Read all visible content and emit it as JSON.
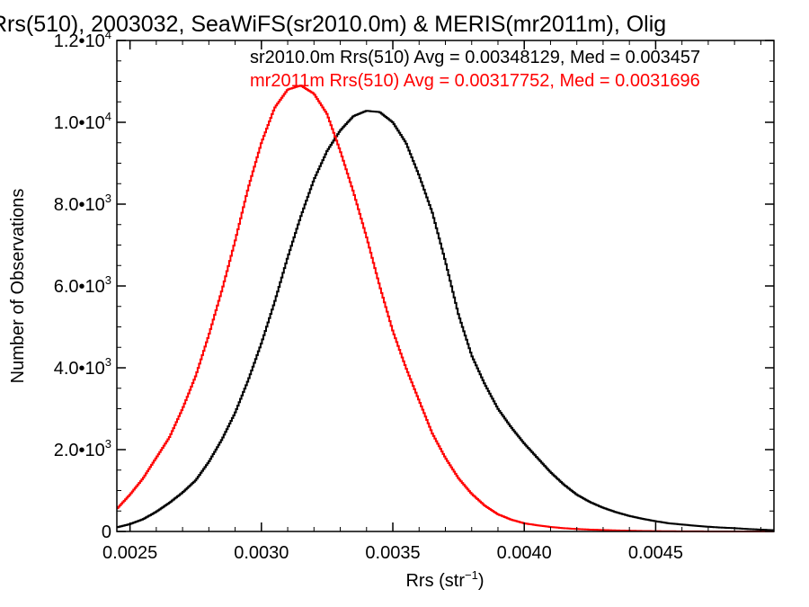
{
  "chart_data": {
    "type": "line",
    "step": true,
    "title": "Rrs(510), 2003032, SeaWiFS(sr2010.0m) & MERIS(mr2011m), Olig",
    "xlabel": "Rrs (str",
    "xlabel_sup": "-1",
    "xlabel_suffix": ")",
    "ylabel": "Number of Observations",
    "xlim": [
      0.00245,
      0.00495
    ],
    "ylim": [
      0,
      12000
    ],
    "grid": false,
    "legend_position": "top-right",
    "x_ticks": [
      {
        "value": 0.0025,
        "label": "0.0025"
      },
      {
        "value": 0.003,
        "label": "0.0030"
      },
      {
        "value": 0.0035,
        "label": "0.0035"
      },
      {
        "value": 0.004,
        "label": "0.0040"
      },
      {
        "value": 0.0045,
        "label": "0.0045"
      }
    ],
    "y_ticks": [
      {
        "value": 0,
        "mant": "0",
        "exp": ""
      },
      {
        "value": 2000,
        "mant": "2.0•10",
        "exp": "3"
      },
      {
        "value": 4000,
        "mant": "4.0•10",
        "exp": "3"
      },
      {
        "value": 6000,
        "mant": "6.0•10",
        "exp": "3"
      },
      {
        "value": 8000,
        "mant": "8.0•10",
        "exp": "3"
      },
      {
        "value": 10000,
        "mant": "1.0•10",
        "exp": "4"
      },
      {
        "value": 12000,
        "mant": "1.2•10",
        "exp": "4"
      }
    ],
    "series": [
      {
        "name": "sr2010.0m",
        "annotation": "sr2010.0m Rrs(510) Avg = 0.00348129, Med = 0.003457",
        "color": "#000000",
        "points": [
          [
            0.00245,
            100
          ],
          [
            0.0025,
            180
          ],
          [
            0.00255,
            300
          ],
          [
            0.0026,
            480
          ],
          [
            0.00265,
            700
          ],
          [
            0.0027,
            950
          ],
          [
            0.00275,
            1250
          ],
          [
            0.0028,
            1700
          ],
          [
            0.00285,
            2250
          ],
          [
            0.0029,
            2900
          ],
          [
            0.00295,
            3700
          ],
          [
            0.003,
            4600
          ],
          [
            0.00305,
            5600
          ],
          [
            0.0031,
            6700
          ],
          [
            0.00315,
            7700
          ],
          [
            0.0032,
            8600
          ],
          [
            0.00325,
            9300
          ],
          [
            0.0033,
            9800
          ],
          [
            0.00335,
            10150
          ],
          [
            0.0034,
            10280
          ],
          [
            0.00345,
            10250
          ],
          [
            0.0035,
            10000
          ],
          [
            0.00355,
            9500
          ],
          [
            0.0036,
            8700
          ],
          [
            0.00365,
            7800
          ],
          [
            0.0037,
            6600
          ],
          [
            0.00375,
            5300
          ],
          [
            0.0038,
            4300
          ],
          [
            0.00385,
            3600
          ],
          [
            0.0039,
            3000
          ],
          [
            0.00395,
            2550
          ],
          [
            0.004,
            2150
          ],
          [
            0.00405,
            1800
          ],
          [
            0.0041,
            1450
          ],
          [
            0.00415,
            1150
          ],
          [
            0.0042,
            900
          ],
          [
            0.00425,
            720
          ],
          [
            0.0043,
            580
          ],
          [
            0.00435,
            470
          ],
          [
            0.0044,
            380
          ],
          [
            0.00445,
            310
          ],
          [
            0.0045,
            250
          ],
          [
            0.00455,
            200
          ],
          [
            0.0046,
            170
          ],
          [
            0.00465,
            140
          ],
          [
            0.0047,
            115
          ],
          [
            0.00475,
            95
          ],
          [
            0.0048,
            80
          ],
          [
            0.00485,
            60
          ],
          [
            0.0049,
            45
          ],
          [
            0.00495,
            30
          ]
        ]
      },
      {
        "name": "mr2011m",
        "annotation": "mr2011m Rrs(510) Avg = 0.00317752, Med = 0.0031696",
        "color": "#ff0000",
        "points": [
          [
            0.00245,
            550
          ],
          [
            0.0025,
            900
          ],
          [
            0.00255,
            1300
          ],
          [
            0.0026,
            1800
          ],
          [
            0.00265,
            2300
          ],
          [
            0.0027,
            3000
          ],
          [
            0.00275,
            3800
          ],
          [
            0.0028,
            4800
          ],
          [
            0.00285,
            5900
          ],
          [
            0.0029,
            7100
          ],
          [
            0.00295,
            8400
          ],
          [
            0.003,
            9500
          ],
          [
            0.00305,
            10350
          ],
          [
            0.0031,
            10800
          ],
          [
            0.00315,
            10900
          ],
          [
            0.0032,
            10700
          ],
          [
            0.00325,
            10200
          ],
          [
            0.0033,
            9300
          ],
          [
            0.00335,
            8300
          ],
          [
            0.0034,
            7200
          ],
          [
            0.00345,
            6000
          ],
          [
            0.0035,
            4900
          ],
          [
            0.00355,
            4000
          ],
          [
            0.0036,
            3200
          ],
          [
            0.00365,
            2400
          ],
          [
            0.0037,
            1800
          ],
          [
            0.00375,
            1300
          ],
          [
            0.0038,
            920
          ],
          [
            0.00385,
            630
          ],
          [
            0.0039,
            420
          ],
          [
            0.00395,
            290
          ],
          [
            0.004,
            200
          ],
          [
            0.00405,
            150
          ],
          [
            0.0041,
            110
          ],
          [
            0.00415,
            80
          ],
          [
            0.0042,
            60
          ],
          [
            0.00425,
            45
          ],
          [
            0.0043,
            35
          ],
          [
            0.00435,
            25
          ],
          [
            0.0044,
            18
          ],
          [
            0.00445,
            12
          ],
          [
            0.0045,
            8
          ],
          [
            0.00455,
            5
          ],
          [
            0.0046,
            3
          ],
          [
            0.00465,
            2
          ],
          [
            0.0047,
            1
          ],
          [
            0.00475,
            1
          ],
          [
            0.0048,
            0
          ],
          [
            0.00485,
            0
          ],
          [
            0.0049,
            0
          ],
          [
            0.00495,
            0
          ]
        ]
      }
    ]
  }
}
